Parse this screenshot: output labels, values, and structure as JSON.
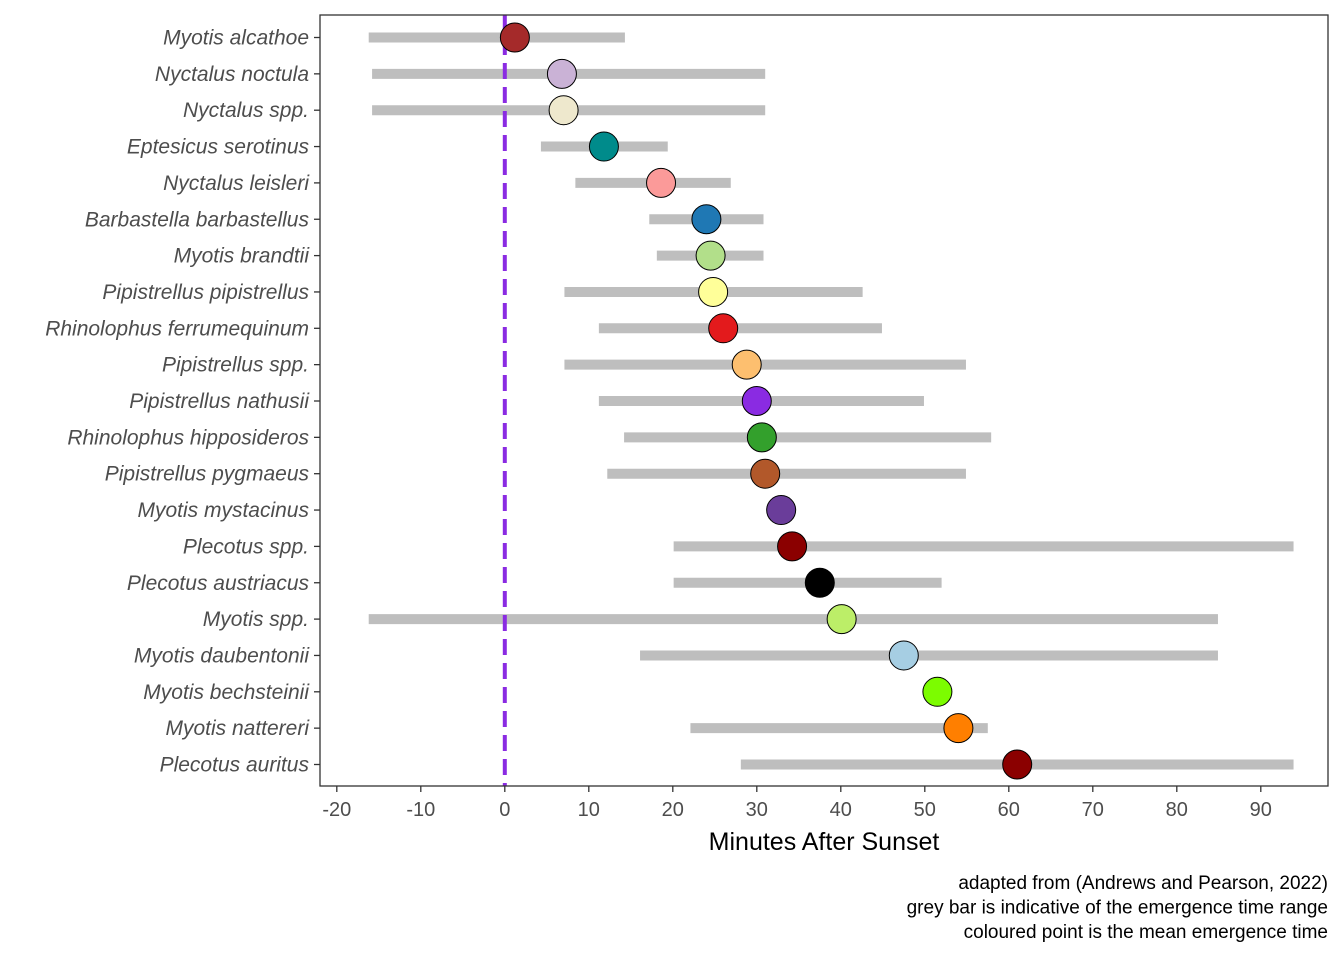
{
  "chart_data": {
    "type": "dot-range",
    "title": "",
    "xlabel": "Minutes After Sunset",
    "ylabel": "",
    "xlim": [
      -22,
      98
    ],
    "xticks": [
      -20,
      -10,
      0,
      10,
      20,
      30,
      40,
      50,
      60,
      70,
      80,
      90
    ],
    "xtick_labels": [
      "-20",
      "-10",
      "0",
      "10",
      "20",
      "30",
      "40",
      "50",
      "60",
      "70",
      "80",
      "90"
    ],
    "grid": false,
    "reference_line": {
      "x": 0,
      "color": "#8A2BE2",
      "style": "dashed"
    },
    "range_color": "#bebebe",
    "species": [
      {
        "name": "Myotis alcathoe",
        "mean": 1.2,
        "min": -16.2,
        "max": 14.3,
        "color": "#A52A2A"
      },
      {
        "name": "Nyctalus noctula",
        "mean": 6.8,
        "min": -15.8,
        "max": 31.0,
        "color": "#CAB2D6"
      },
      {
        "name": "Nyctalus spp.",
        "mean": 7.0,
        "min": -15.8,
        "max": 31.0,
        "color": "#EEE8CD"
      },
      {
        "name": "Eptesicus serotinus",
        "mean": 11.8,
        "min": 4.3,
        "max": 19.4,
        "color": "#008B8B"
      },
      {
        "name": "Nyctalus leisleri",
        "mean": 18.6,
        "min": 8.4,
        "max": 26.9,
        "color": "#FB9A99"
      },
      {
        "name": "Barbastella barbastellus",
        "mean": 24.0,
        "min": 17.2,
        "max": 30.8,
        "color": "#1F78B4"
      },
      {
        "name": "Myotis brandtii",
        "mean": 24.5,
        "min": 18.1,
        "max": 30.8,
        "color": "#B2DF8A"
      },
      {
        "name": "Pipistrellus pipistrellus",
        "mean": 24.8,
        "min": 7.1,
        "max": 42.6,
        "color": "#FFFF99"
      },
      {
        "name": "Rhinolophus ferrumequinum",
        "mean": 26.0,
        "min": 11.2,
        "max": 44.9,
        "color": "#E31A1C"
      },
      {
        "name": "Pipistrellus spp.",
        "mean": 28.8,
        "min": 7.1,
        "max": 54.9,
        "color": "#FDBF6F"
      },
      {
        "name": "Pipistrellus nathusii",
        "mean": 30.0,
        "min": 11.2,
        "max": 49.9,
        "color": "#8A2BE2"
      },
      {
        "name": "Rhinolophus hipposideros",
        "mean": 30.6,
        "min": 14.2,
        "max": 57.9,
        "color": "#33A02C"
      },
      {
        "name": "Pipistrellus pygmaeus",
        "mean": 31.0,
        "min": 12.2,
        "max": 54.9,
        "color": "#B2582A"
      },
      {
        "name": "Myotis mystacinus",
        "mean": 32.9,
        "min": null,
        "max": null,
        "color": "#6A3D9A"
      },
      {
        "name": "Plecotus spp.",
        "mean": 34.2,
        "min": 20.1,
        "max": 93.9,
        "color": "#8B0000"
      },
      {
        "name": "Plecotus austriacus",
        "mean": 37.5,
        "min": 20.1,
        "max": 52.0,
        "color": "#000000"
      },
      {
        "name": "Myotis spp.",
        "mean": 40.1,
        "min": -16.2,
        "max": 84.9,
        "color": "#BCEE68"
      },
      {
        "name": "Myotis daubentonii",
        "mean": 47.5,
        "min": 16.1,
        "max": 84.9,
        "color": "#A6CEE3"
      },
      {
        "name": "Myotis bechsteinii",
        "mean": 51.5,
        "min": null,
        "max": null,
        "color": "#7CFC00"
      },
      {
        "name": "Myotis nattereri",
        "mean": 54.0,
        "min": 22.1,
        "max": 57.5,
        "color": "#FF7F00"
      },
      {
        "name": "Plecotus auritus",
        "mean": 61.0,
        "min": 28.1,
        "max": 93.9,
        "color": "#8B0000"
      }
    ],
    "caption": [
      "adapted from (Andrews and Pearson, 2022)",
      "grey bar is indicative of the emergence time range",
      "coloured point is the mean emergence time"
    ]
  }
}
